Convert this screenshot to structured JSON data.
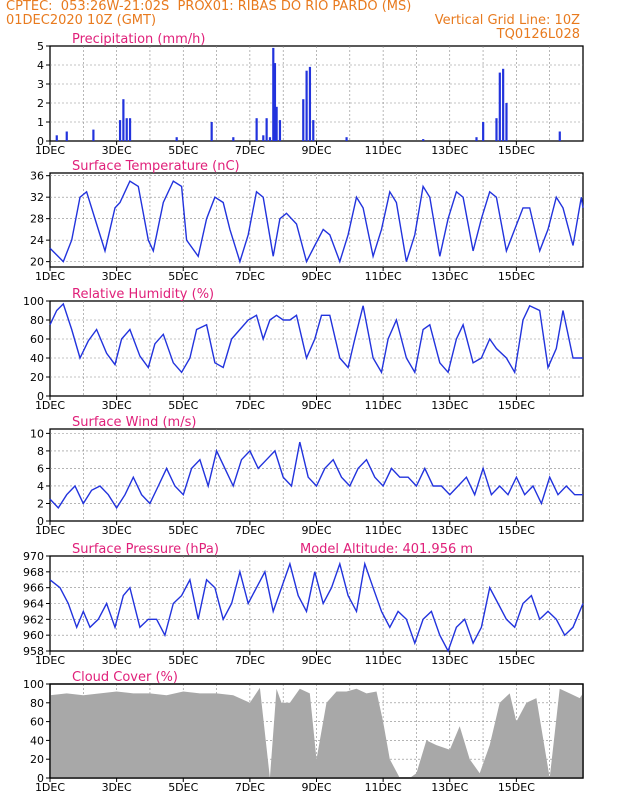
{
  "header": {
    "line1": "CPTEC:  053:26W-21:02S  PROX01: RIBAS DO RIO PARDO (MS)",
    "line2_left": "01DEC2020 10Z (GMT)",
    "line2_right": "Vertical Grid Line: 10Z",
    "line3_right": "TQ0126L028"
  },
  "colors": {
    "series": "#2233dd",
    "title": "#e0207a",
    "header": "#e87a1e",
    "cloud": "#a8a8a8",
    "grid": "#888888"
  },
  "x_ticks": [
    "1DEC",
    "3DEC",
    "5DEC",
    "7DEC",
    "9DEC",
    "11DEC",
    "13DEC",
    "15DEC"
  ],
  "chart_data": [
    {
      "id": "precip",
      "type": "bar",
      "title": "Precipitation (mm/h)",
      "ylim": [
        0,
        5
      ],
      "yticks": [
        0,
        1,
        2,
        3,
        4,
        5
      ],
      "points": [
        [
          0.2,
          0.3
        ],
        [
          0.5,
          0.5
        ],
        [
          1.3,
          0.6
        ],
        [
          2.1,
          1.1
        ],
        [
          2.2,
          2.2
        ],
        [
          2.3,
          1.2
        ],
        [
          2.4,
          1.2
        ],
        [
          3.8,
          0.2
        ],
        [
          4.85,
          1.0
        ],
        [
          5.5,
          0.2
        ],
        [
          6.2,
          1.2
        ],
        [
          6.4,
          0.3
        ],
        [
          6.5,
          1.2
        ],
        [
          6.6,
          0.2
        ],
        [
          6.7,
          4.9
        ],
        [
          6.75,
          4.1
        ],
        [
          6.8,
          1.8
        ],
        [
          6.9,
          1.1
        ],
        [
          7.6,
          2.2
        ],
        [
          7.7,
          3.7
        ],
        [
          7.8,
          3.9
        ],
        [
          7.9,
          1.1
        ],
        [
          8.9,
          0.2
        ],
        [
          11.2,
          0.1
        ],
        [
          12.8,
          0.2
        ],
        [
          13.0,
          1.0
        ],
        [
          13.4,
          1.2
        ],
        [
          13.5,
          3.6
        ],
        [
          13.6,
          3.8
        ],
        [
          13.7,
          2.0
        ],
        [
          15.3,
          0.5
        ]
      ]
    },
    {
      "id": "temp",
      "type": "line",
      "title": "Surface Temperature (nC)",
      "ylim": [
        19,
        36.5
      ],
      "yticks": [
        20,
        24,
        28,
        32,
        36
      ],
      "x": [
        0,
        0.4,
        0.65,
        0.9,
        1.1,
        1.4,
        1.65,
        1.95,
        2.1,
        2.4,
        2.65,
        2.95,
        3.1,
        3.4,
        3.7,
        3.95,
        4.1,
        4.45,
        4.7,
        4.95,
        5.2,
        5.4,
        5.7,
        5.95,
        6.2,
        6.4,
        6.7,
        6.9,
        7.1,
        7.4,
        7.7,
        7.95,
        8.2,
        8.4,
        8.7,
        8.95,
        9.2,
        9.4,
        9.7,
        9.95,
        10.2,
        10.4,
        10.7,
        10.95,
        11.2,
        11.4,
        11.7,
        11.95,
        12.2,
        12.4,
        12.7,
        12.95,
        13.2,
        13.4,
        13.7,
        13.95,
        14.2,
        14.4,
        14.7,
        14.95,
        15.2,
        15.4,
        15.7,
        15.95,
        16.0
      ],
      "values": [
        22.5,
        20,
        24,
        32,
        33,
        27,
        22,
        30,
        31,
        35,
        34,
        24,
        22,
        31,
        35,
        34,
        24,
        21,
        28,
        32,
        31,
        26,
        20,
        25,
        33,
        32,
        21,
        28,
        29,
        27,
        20,
        23,
        26,
        25,
        20,
        25,
        32,
        30,
        21,
        26,
        33,
        31,
        20,
        25,
        34,
        32,
        21,
        28,
        33,
        32,
        22,
        28,
        33,
        32,
        22,
        26,
        30,
        30,
        22,
        26,
        32,
        30,
        23,
        32,
        30
      ]
    },
    {
      "id": "rh",
      "type": "line",
      "title": "Relative Humidity (%)",
      "ylim": [
        0,
        100
      ],
      "yticks": [
        0,
        20,
        40,
        60,
        80,
        100
      ],
      "x": [
        0,
        0.2,
        0.4,
        0.65,
        0.9,
        1.15,
        1.4,
        1.7,
        1.95,
        2.15,
        2.4,
        2.7,
        2.95,
        3.15,
        3.4,
        3.7,
        3.95,
        4.2,
        4.4,
        4.7,
        4.95,
        5.2,
        5.45,
        5.7,
        5.95,
        6.2,
        6.4,
        6.6,
        6.8,
        7.0,
        7.2,
        7.4,
        7.7,
        7.95,
        8.15,
        8.4,
        8.7,
        8.95,
        9.15,
        9.4,
        9.7,
        9.95,
        10.15,
        10.4,
        10.7,
        10.95,
        11.2,
        11.4,
        11.7,
        11.95,
        12.2,
        12.4,
        12.7,
        12.95,
        13.2,
        13.4,
        13.7,
        13.95,
        14.2,
        14.4,
        14.7,
        14.95,
        15.2,
        15.4,
        15.7,
        16.0
      ],
      "values": [
        75,
        90,
        97,
        70,
        40,
        58,
        70,
        45,
        33,
        60,
        70,
        42,
        30,
        55,
        65,
        35,
        25,
        40,
        70,
        75,
        35,
        30,
        60,
        70,
        80,
        85,
        60,
        80,
        85,
        80,
        80,
        85,
        40,
        60,
        85,
        85,
        40,
        30,
        60,
        95,
        40,
        25,
        60,
        80,
        40,
        25,
        70,
        75,
        35,
        25,
        60,
        75,
        35,
        40,
        60,
        50,
        40,
        25,
        80,
        95,
        90,
        30,
        50,
        90,
        40,
        40
      ]
    },
    {
      "id": "wind",
      "type": "line",
      "title": "Surface Wind (m/s)",
      "ylim": [
        0,
        10.5
      ],
      "yticks": [
        0,
        2,
        4,
        6,
        8,
        10
      ],
      "x": [
        0,
        0.25,
        0.5,
        0.75,
        1.0,
        1.25,
        1.5,
        1.75,
        2.0,
        2.25,
        2.5,
        2.75,
        3.0,
        3.25,
        3.5,
        3.75,
        4.0,
        4.25,
        4.5,
        4.75,
        5.0,
        5.25,
        5.5,
        5.75,
        6.0,
        6.25,
        6.5,
        6.75,
        7.0,
        7.25,
        7.5,
        7.75,
        8.0,
        8.25,
        8.5,
        8.75,
        9.0,
        9.25,
        9.5,
        9.75,
        10.0,
        10.25,
        10.5,
        10.75,
        11.0,
        11.25,
        11.5,
        11.75,
        12.0,
        12.25,
        12.5,
        12.75,
        13.0,
        13.25,
        13.5,
        13.75,
        14.0,
        14.25,
        14.5,
        14.75,
        15.0,
        15.25,
        15.5,
        15.75,
        16.0
      ],
      "values": [
        2.5,
        1.5,
        3,
        4,
        2,
        3.5,
        4,
        3,
        1.5,
        3,
        5,
        3,
        2,
        4,
        6,
        4,
        3,
        6,
        7,
        4,
        8,
        6,
        4,
        7,
        8,
        6,
        7,
        8,
        5,
        4,
        9,
        5,
        4,
        6,
        7,
        5,
        4,
        6,
        7,
        5,
        4,
        6,
        5,
        5,
        4,
        6,
        4,
        4,
        3,
        4,
        5,
        3,
        6,
        3,
        4,
        3,
        5,
        3,
        4,
        2,
        5,
        3,
        4,
        3,
        3
      ]
    },
    {
      "id": "pressure",
      "type": "line",
      "title": "Surface Pressure (hPa)",
      "annotation": "Model Altitude: 401.956 m",
      "ylim": [
        958,
        970
      ],
      "yticks": [
        958,
        960,
        962,
        964,
        966,
        968,
        970
      ],
      "x": [
        0,
        0.3,
        0.55,
        0.8,
        1.0,
        1.2,
        1.45,
        1.7,
        1.95,
        2.2,
        2.4,
        2.7,
        2.95,
        3.2,
        3.45,
        3.7,
        3.95,
        4.2,
        4.45,
        4.7,
        4.95,
        5.2,
        5.45,
        5.7,
        5.95,
        6.2,
        6.45,
        6.7,
        6.95,
        7.2,
        7.45,
        7.7,
        7.95,
        8.2,
        8.45,
        8.7,
        8.95,
        9.2,
        9.45,
        9.7,
        9.95,
        10.2,
        10.45,
        10.7,
        10.95,
        11.2,
        11.45,
        11.7,
        11.95,
        12.2,
        12.45,
        12.7,
        12.95,
        13.2,
        13.45,
        13.7,
        13.95,
        14.2,
        14.45,
        14.7,
        14.95,
        15.2,
        15.45,
        15.7,
        16.0
      ],
      "values": [
        967,
        966,
        964,
        961,
        963,
        961,
        962,
        964,
        961,
        965,
        966,
        961,
        962,
        962,
        960,
        964,
        965,
        967,
        962,
        967,
        966,
        962,
        964,
        968,
        964,
        966,
        968,
        963,
        966,
        969,
        965,
        963,
        968,
        964,
        966,
        969,
        965,
        963,
        969,
        966,
        963,
        961,
        963,
        962,
        959,
        962,
        963,
        960,
        958,
        961,
        962,
        959,
        961,
        966,
        964,
        962,
        961,
        964,
        965,
        962,
        963,
        962,
        960,
        961,
        964
      ]
    },
    {
      "id": "cloud",
      "type": "area",
      "title": "Cloud Cover (%)",
      "ylim": [
        0,
        100
      ],
      "yticks": [
        0,
        20,
        40,
        60,
        80,
        100
      ],
      "x": [
        0,
        0.5,
        1.0,
        1.5,
        2.0,
        2.5,
        3.0,
        3.5,
        4.0,
        4.5,
        5.0,
        5.5,
        6.0,
        6.3,
        6.6,
        6.8,
        6.95,
        7.2,
        7.5,
        7.8,
        8.0,
        8.3,
        8.6,
        8.9,
        9.2,
        9.5,
        9.8,
        10.0,
        10.2,
        10.5,
        10.8,
        11.0,
        11.3,
        11.6,
        12.0,
        12.3,
        12.6,
        12.9,
        13.2,
        13.5,
        13.8,
        14.0,
        14.3,
        14.6,
        15.0,
        15.3,
        15.6,
        15.9,
        16.0
      ],
      "values": [
        88,
        90,
        88,
        90,
        92,
        90,
        90,
        88,
        92,
        90,
        90,
        88,
        80,
        96,
        0,
        95,
        80,
        80,
        95,
        90,
        20,
        80,
        92,
        92,
        95,
        90,
        92,
        60,
        20,
        0,
        0,
        5,
        40,
        35,
        30,
        55,
        20,
        5,
        35,
        80,
        90,
        60,
        80,
        85,
        0,
        95,
        90,
        85,
        90
      ]
    }
  ]
}
